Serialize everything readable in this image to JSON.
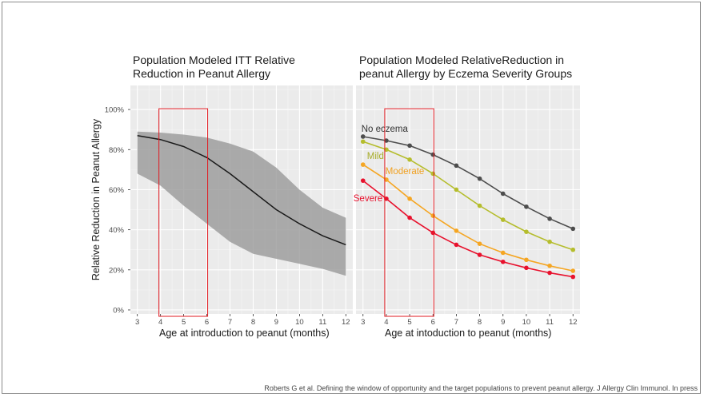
{
  "citation": "Roberts G et al. Defining the window of opportunity and the target populations to prevent peanut allergy. J Allergy Clin Immunol. In press",
  "chart_data": [
    {
      "type": "line",
      "title": "Population Modeled ITT Relative\nReduction in Peanut Allergy",
      "xlabel": "Age at introduction to peanut (months)",
      "ylabel": "Relative Reduction in Peanut Allergy",
      "x": [
        3,
        4,
        5,
        6,
        7,
        8,
        9,
        10,
        11,
        12
      ],
      "xlim": [
        2.7,
        12.3
      ],
      "ylim": [
        -2,
        112
      ],
      "yticks": [
        0,
        20,
        40,
        60,
        80,
        100
      ],
      "ytick_labels": [
        "0%",
        "20%",
        "40%",
        "60%",
        "80%",
        "100%"
      ],
      "grid": true,
      "series": [
        {
          "name": "ITT relative reduction",
          "values": [
            87,
            85,
            81.5,
            76,
            68,
            59,
            50,
            43,
            37,
            32.5
          ],
          "lower": [
            68,
            62,
            52,
            43,
            34,
            28,
            25.5,
            23,
            20.5,
            17
          ],
          "upper": [
            89,
            88.5,
            87.5,
            86,
            83,
            79,
            71,
            60,
            51,
            46
          ],
          "color": "#1a1a1a"
        }
      ],
      "highlight": {
        "x_range": [
          4,
          6
        ],
        "y_range": [
          -5,
          100
        ],
        "color": "#e11b22"
      }
    },
    {
      "type": "line",
      "title": "Population Modeled RelativeReduction in\npeanut Allergy by Eczema Severity Groups",
      "xlabel": "Age at intoduction to peanut (months)",
      "x": [
        3,
        4,
        5,
        6,
        7,
        8,
        9,
        10,
        11,
        12
      ],
      "xlim": [
        2.7,
        12.3
      ],
      "ylim": [
        -2,
        112
      ],
      "grid": true,
      "series": [
        {
          "name": "No eczema",
          "values": [
            86.5,
            84.5,
            82,
            77.5,
            72,
            65.5,
            58,
            51.5,
            45.5,
            40.5
          ],
          "color": "#4d4d4d",
          "label_color": "#333333"
        },
        {
          "name": "Mild",
          "values": [
            84,
            80,
            75,
            68,
            60,
            52,
            45,
            39,
            34,
            30
          ],
          "color": "#b5bd2d",
          "label_color": "#a8ad2a"
        },
        {
          "name": "Moderate",
          "values": [
            72.5,
            65,
            55.5,
            47,
            39.5,
            33,
            28.5,
            25,
            22,
            19.5
          ],
          "color": "#f5a623",
          "label_color": "#f0a020"
        },
        {
          "name": "Severe",
          "values": [
            64.5,
            55.5,
            46,
            38.5,
            32.5,
            27.5,
            24,
            21,
            18.5,
            16.5
          ],
          "color": "#e8112d",
          "label_color": "#e8112d"
        }
      ],
      "highlight": {
        "x_range": [
          4,
          6
        ],
        "y_range": [
          -5,
          100
        ],
        "color": "#e11b22"
      }
    }
  ]
}
